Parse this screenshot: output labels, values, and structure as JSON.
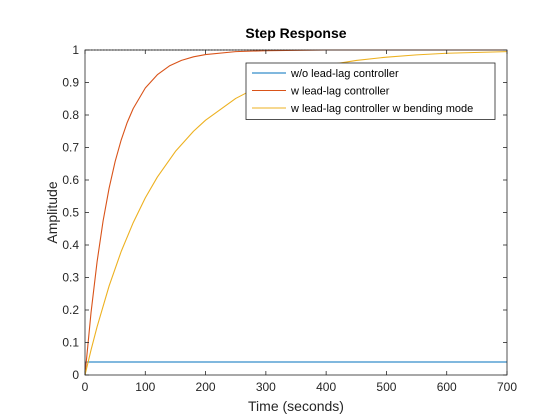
{
  "chart_data": {
    "type": "line",
    "title": "Step Response",
    "xlabel": "Time (seconds)",
    "ylabel": "Amplitude",
    "xlim": [
      0,
      700
    ],
    "ylim": [
      0,
      1
    ],
    "xticks": [
      0,
      100,
      200,
      300,
      400,
      500,
      600,
      700
    ],
    "yticks": [
      0,
      0.1,
      0.2,
      0.3,
      0.4,
      0.5,
      0.6,
      0.7,
      0.8,
      0.9,
      1
    ],
    "xtick_labels": [
      "0",
      "100",
      "200",
      "300",
      "400",
      "500",
      "600",
      "700"
    ],
    "ytick_labels": [
      "0",
      "0.1",
      "0.2",
      "0.3",
      "0.4",
      "0.5",
      "0.6",
      "0.7",
      "0.8",
      "0.9",
      "1"
    ],
    "grid": false,
    "legend_position": "top-right",
    "steady_state_reference": 1,
    "series": [
      {
        "name": "w/o lead-lag controller",
        "color": "#0072BD",
        "x": [
          0,
          1,
          700
        ],
        "y": [
          0,
          0.04,
          0.04
        ]
      },
      {
        "name": "w lead-lag controller",
        "color": "#D95319",
        "x": [
          0,
          10,
          20,
          30,
          40,
          50,
          60,
          70,
          80,
          100,
          120,
          140,
          160,
          180,
          200,
          250,
          300,
          350,
          400,
          500,
          600,
          700
        ],
        "y": [
          0,
          0.192,
          0.348,
          0.474,
          0.575,
          0.657,
          0.723,
          0.777,
          0.82,
          0.883,
          0.924,
          0.951,
          0.968,
          0.979,
          0.986,
          0.995,
          0.998,
          0.999,
          1.0,
          1.0,
          1.0,
          1.0
        ]
      },
      {
        "name": "w lead-lag controller w bending mode",
        "color": "#EDB120",
        "x": [
          0,
          10,
          20,
          40,
          60,
          80,
          100,
          120,
          150,
          180,
          200,
          250,
          300,
          350,
          400,
          450,
          500,
          550,
          600,
          700
        ],
        "y": [
          0,
          0.077,
          0.148,
          0.274,
          0.38,
          0.469,
          0.545,
          0.609,
          0.688,
          0.75,
          0.784,
          0.851,
          0.899,
          0.931,
          0.953,
          0.968,
          0.978,
          0.985,
          0.99,
          0.995
        ]
      }
    ]
  }
}
